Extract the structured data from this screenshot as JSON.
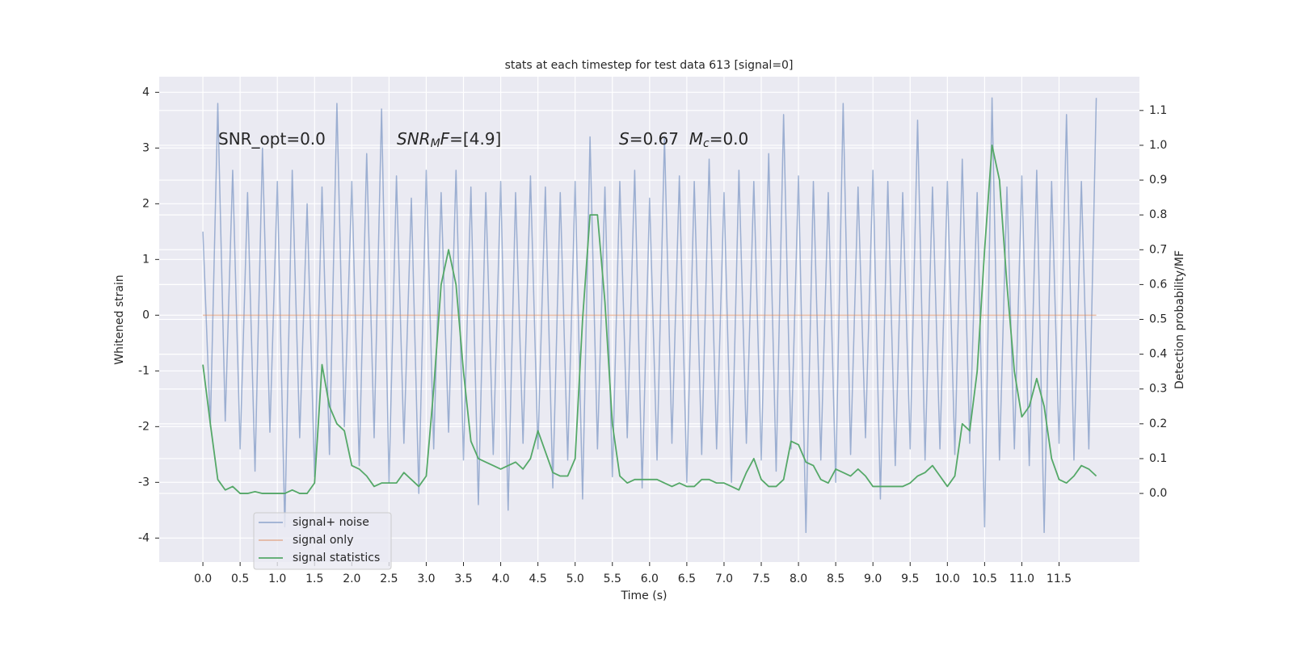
{
  "chart_data": {
    "type": "line",
    "title": "stats at each timestep for test data 613 [signal=0]",
    "xlabel": "Time (s)",
    "ylabel": "Whitened strain",
    "y2label": "Detection probability/MF",
    "grid": true,
    "legend": "lower left",
    "annotations": [
      [
        {
          "text": "SNR_opt=0.0",
          "style": "normal"
        }
      ],
      [
        {
          "text": "SNR",
          "style": "italic"
        },
        {
          "text": "M",
          "style": "italic-sub"
        },
        {
          "text": "F",
          "style": "italic"
        },
        {
          "text": "=[4.9]",
          "style": "normal"
        }
      ],
      [
        {
          "text": "S",
          "style": "italic"
        },
        {
          "text": "=0.67  ",
          "style": "normal"
        },
        {
          "text": "M",
          "style": "italic"
        },
        {
          "text": "c",
          "style": "italic-sub"
        },
        {
          "text": "=0.0",
          "style": "normal"
        }
      ]
    ],
    "xlim": [
      -0.587,
      12.58
    ],
    "ylim": [
      -4.43,
      4.28
    ],
    "y2lim": [
      -0.197,
      1.197
    ],
    "xticks": [
      {
        "value": 0,
        "label": "0.0"
      },
      {
        "value": 0.5,
        "label": "0.5"
      },
      {
        "value": 1,
        "label": "1.0"
      },
      {
        "value": 1.5,
        "label": "1.5"
      },
      {
        "value": 2,
        "label": "2.0"
      },
      {
        "value": 2.5,
        "label": "2.5"
      },
      {
        "value": 3,
        "label": "3.0"
      },
      {
        "value": 3.5,
        "label": "3.5"
      },
      {
        "value": 4,
        "label": "4.0"
      },
      {
        "value": 4.5,
        "label": "4.5"
      },
      {
        "value": 5,
        "label": "5.0"
      },
      {
        "value": 5.5,
        "label": "5.5"
      },
      {
        "value": 6,
        "label": "6.0"
      },
      {
        "value": 6.5,
        "label": "6.5"
      },
      {
        "value": 7,
        "label": "7.0"
      },
      {
        "value": 7.5,
        "label": "7.5"
      },
      {
        "value": 8,
        "label": "8.0"
      },
      {
        "value": 8.5,
        "label": "8.5"
      },
      {
        "value": 9,
        "label": "9.0"
      },
      {
        "value": 9.5,
        "label": "9.5"
      },
      {
        "value": 10,
        "label": "10.0"
      },
      {
        "value": 10.5,
        "label": "10.5"
      },
      {
        "value": 11,
        "label": "11.0"
      },
      {
        "value": 11.5,
        "label": "11.5"
      }
    ],
    "yticks": [
      -4,
      -3,
      -2,
      -1,
      0,
      1,
      2,
      3,
      4
    ],
    "y2ticks": [
      {
        "value": 0,
        "label": "0.0"
      },
      {
        "value": 0.1,
        "label": "0.1"
      },
      {
        "value": 0.2,
        "label": "0.2"
      },
      {
        "value": 0.3,
        "label": "0.3"
      },
      {
        "value": 0.4,
        "label": "0.4"
      },
      {
        "value": 0.5,
        "label": "0.5"
      },
      {
        "value": 0.6,
        "label": "0.6"
      },
      {
        "value": 0.7,
        "label": "0.7"
      },
      {
        "value": 0.8,
        "label": "0.8"
      },
      {
        "value": 0.9,
        "label": "0.9"
      },
      {
        "value": 1,
        "label": "1.0"
      },
      {
        "value": 1.1,
        "label": "1.1"
      }
    ],
    "x": [
      0.0,
      0.1,
      0.2,
      0.3,
      0.4,
      0.5,
      0.6,
      0.7,
      0.8,
      0.9,
      1.0,
      1.1,
      1.2,
      1.3,
      1.4,
      1.5,
      1.6,
      1.7,
      1.8,
      1.9,
      2.0,
      2.1,
      2.2,
      2.3,
      2.4,
      2.5,
      2.6,
      2.7,
      2.8,
      2.9,
      3.0,
      3.1,
      3.2,
      3.3,
      3.4,
      3.5,
      3.6,
      3.7,
      3.8,
      3.9,
      4.0,
      4.1,
      4.2,
      4.3,
      4.4,
      4.5,
      4.6,
      4.7,
      4.8,
      4.9,
      5.0,
      5.1,
      5.2,
      5.3,
      5.4,
      5.5,
      5.6,
      5.7,
      5.8,
      5.9,
      6.0,
      6.1,
      6.2,
      6.3,
      6.4,
      6.5,
      6.6,
      6.7,
      6.8,
      6.9,
      7.0,
      7.1,
      7.2,
      7.3,
      7.4,
      7.5,
      7.6,
      7.7,
      7.8,
      7.9,
      8.0,
      8.1,
      8.2,
      8.3,
      8.4,
      8.5,
      8.6,
      8.7,
      8.8,
      8.9,
      9.0,
      9.1,
      9.2,
      9.3,
      9.4,
      9.5,
      9.6,
      9.7,
      9.8,
      9.9,
      10.0,
      10.1,
      10.2,
      10.3,
      10.4,
      10.5,
      10.6,
      10.7,
      10.8,
      10.9,
      11.0,
      11.1,
      11.2,
      11.3,
      11.4,
      11.5,
      11.6,
      11.7,
      11.8,
      11.9,
      12.0
    ],
    "series": [
      {
        "name": "signal+ noise",
        "color": "#4c72b0",
        "axis": "y",
        "values": [
          1.5,
          -2.0,
          3.8,
          -1.9,
          2.6,
          -2.4,
          2.2,
          -2.8,
          3.0,
          -2.1,
          2.4,
          -3.8,
          2.6,
          -2.2,
          2.0,
          -2.9,
          2.3,
          -2.5,
          3.8,
          -2.0,
          2.4,
          -2.7,
          2.9,
          -2.2,
          3.7,
          -3.0,
          2.5,
          -2.3,
          2.1,
          -3.2,
          2.6,
          -2.4,
          2.2,
          -2.1,
          2.6,
          -2.6,
          2.3,
          -3.4,
          2.2,
          -2.5,
          2.4,
          -3.5,
          2.2,
          -2.3,
          2.5,
          -2.4,
          2.3,
          -3.1,
          2.2,
          -2.6,
          2.4,
          -3.3,
          3.2,
          -2.4,
          2.3,
          -2.9,
          2.4,
          -2.2,
          2.6,
          -3.1,
          2.1,
          -2.6,
          3.2,
          -2.3,
          2.5,
          -3.0,
          2.4,
          -2.5,
          2.8,
          -2.4,
          2.2,
          -3.0,
          2.6,
          -2.3,
          2.4,
          -2.6,
          2.9,
          -2.8,
          3.6,
          -2.4,
          2.5,
          -3.9,
          2.4,
          -2.6,
          2.2,
          -3.0,
          3.8,
          -2.5,
          2.3,
          -2.2,
          2.6,
          -3.3,
          2.4,
          -2.7,
          2.2,
          -2.4,
          3.5,
          -2.6,
          2.3,
          -2.4,
          2.4,
          -2.5,
          2.8,
          -2.3,
          2.2,
          -3.8,
          3.9,
          -2.6,
          2.3,
          -2.4,
          2.5,
          -2.7,
          2.6,
          -3.9,
          2.4,
          -2.3,
          3.6,
          -2.6,
          2.4,
          -2.4,
          3.9
        ]
      },
      {
        "name": "signal only",
        "color": "#dd8452",
        "axis": "y",
        "values": [
          0,
          0,
          0,
          0,
          0,
          0,
          0,
          0,
          0,
          0,
          0,
          0,
          0,
          0,
          0,
          0,
          0,
          0,
          0,
          0,
          0,
          0,
          0,
          0,
          0,
          0,
          0,
          0,
          0,
          0,
          0,
          0,
          0,
          0,
          0,
          0,
          0,
          0,
          0,
          0,
          0,
          0,
          0,
          0,
          0,
          0,
          0,
          0,
          0,
          0,
          0,
          0,
          0,
          0,
          0,
          0,
          0,
          0,
          0,
          0,
          0,
          0,
          0,
          0,
          0,
          0,
          0,
          0,
          0,
          0,
          0,
          0,
          0,
          0,
          0,
          0,
          0,
          0,
          0,
          0,
          0,
          0,
          0,
          0,
          0,
          0,
          0,
          0,
          0,
          0,
          0,
          0,
          0,
          0,
          0,
          0,
          0,
          0,
          0,
          0,
          0,
          0,
          0,
          0,
          0,
          0,
          0,
          0,
          0,
          0,
          0,
          0,
          0,
          0,
          0,
          0,
          0,
          0,
          0,
          0,
          0
        ]
      },
      {
        "name": "signal statistics",
        "color": "#55a868",
        "axis": "y2",
        "values": [
          0.37,
          0.2,
          0.04,
          0.01,
          0.02,
          0.0,
          0.0,
          0.005,
          0.0,
          0.0,
          0.0,
          0.0,
          0.01,
          0.0,
          0.0,
          0.03,
          0.37,
          0.25,
          0.2,
          0.18,
          0.08,
          0.07,
          0.05,
          0.02,
          0.03,
          0.03,
          0.03,
          0.06,
          0.04,
          0.02,
          0.05,
          0.3,
          0.6,
          0.7,
          0.6,
          0.35,
          0.15,
          0.1,
          0.09,
          0.08,
          0.07,
          0.08,
          0.09,
          0.07,
          0.1,
          0.18,
          0.12,
          0.06,
          0.05,
          0.05,
          0.1,
          0.5,
          0.8,
          0.8,
          0.55,
          0.2,
          0.05,
          0.03,
          0.04,
          0.04,
          0.04,
          0.04,
          0.03,
          0.02,
          0.03,
          0.02,
          0.02,
          0.04,
          0.04,
          0.03,
          0.03,
          0.02,
          0.01,
          0.06,
          0.1,
          0.04,
          0.02,
          0.02,
          0.04,
          0.15,
          0.14,
          0.09,
          0.08,
          0.04,
          0.03,
          0.07,
          0.06,
          0.05,
          0.07,
          0.05,
          0.02,
          0.02,
          0.02,
          0.02,
          0.02,
          0.03,
          0.05,
          0.06,
          0.08,
          0.05,
          0.02,
          0.05,
          0.2,
          0.18,
          0.35,
          0.7,
          1.0,
          0.9,
          0.6,
          0.35,
          0.22,
          0.25,
          0.33,
          0.25,
          0.1,
          0.04,
          0.03,
          0.05,
          0.08,
          0.07,
          0.05
        ]
      }
    ]
  }
}
